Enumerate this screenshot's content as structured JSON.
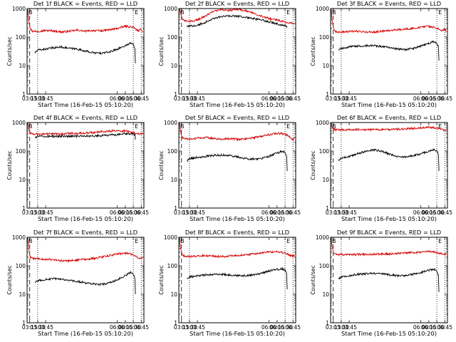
{
  "chart_data": [
    {
      "type": "line",
      "title": "Det 1f BLACK = Events, RED = LLD",
      "ylabel": "Counts/sec",
      "xlabel": "Start Time (16-Feb-15 05:10:20)",
      "yscale": "log",
      "ylim": [
        1,
        1000
      ],
      "x_range": [
        "03:10",
        "06:50"
      ],
      "x_ticks": [
        "03:15",
        "03:30",
        "03:45",
        "06:00",
        "06:15",
        "06:30",
        "06:45"
      ],
      "y_ticks": [
        "1",
        "10",
        "100",
        "1000"
      ],
      "markers": [
        "B",
        "E"
      ],
      "series": [
        {
          "color": "#d40000",
          "x": [
            "03:11",
            "03:13",
            "03:16",
            "03:20",
            "03:30",
            "03:45",
            "04:00",
            "04:15",
            "04:30",
            "04:45",
            "05:00",
            "05:15",
            "05:30",
            "05:45",
            "06:00",
            "06:15",
            "06:30",
            "06:40",
            "06:45",
            "06:48"
          ],
          "y": [
            950,
            420,
            200,
            160,
            160,
            170,
            165,
            150,
            160,
            175,
            160,
            170,
            165,
            180,
            200,
            240,
            220,
            160,
            190,
            150
          ]
        },
        {
          "color": "#000000",
          "x": [
            "03:25",
            "03:30",
            "03:45",
            "04:00",
            "04:15",
            "04:30",
            "04:45",
            "05:00",
            "05:15",
            "05:30",
            "05:45",
            "06:00",
            "06:15",
            "06:25",
            "06:30",
            "06:33",
            "06:34"
          ],
          "y": [
            28,
            35,
            38,
            42,
            45,
            40,
            38,
            32,
            28,
            27,
            30,
            38,
            50,
            62,
            55,
            40,
            12
          ]
        }
      ]
    },
    {
      "type": "line",
      "title": "Det 2f BLACK = Events, RED = LLD",
      "ylabel": "Counts/sec",
      "xlabel": "Start Time (16-Feb-15 05:10:20)",
      "yscale": "log",
      "ylim": [
        1,
        1000
      ],
      "x_range": [
        "03:10",
        "06:50"
      ],
      "x_ticks": [
        "03:15",
        "03:30",
        "03:45",
        "06:00",
        "06:15",
        "06:30",
        "06:45"
      ],
      "y_ticks": [
        "1",
        "10",
        "100",
        "1000"
      ],
      "markers": [
        "B",
        "E"
      ],
      "series": [
        {
          "color": "#d40000",
          "x": [
            "03:11",
            "03:13",
            "03:16",
            "03:20",
            "03:30",
            "03:45",
            "04:00",
            "04:15",
            "04:30",
            "04:45",
            "05:00",
            "05:15",
            "05:30",
            "05:45",
            "06:00",
            "06:15",
            "06:30",
            "06:45",
            "06:48"
          ],
          "y": [
            1000,
            700,
            450,
            380,
            350,
            400,
            550,
            800,
            900,
            850,
            950,
            850,
            700,
            550,
            450,
            400,
            330,
            310,
            300
          ]
        },
        {
          "color": "#000000",
          "x": [
            "03:25",
            "03:30",
            "03:45",
            "04:00",
            "04:15",
            "04:30",
            "04:45",
            "05:00",
            "05:15",
            "05:30",
            "05:45",
            "06:00",
            "06:15",
            "06:25",
            "06:30",
            "06:33",
            "06:34"
          ],
          "y": [
            230,
            240,
            260,
            330,
            450,
            520,
            560,
            540,
            500,
            440,
            400,
            340,
            290,
            260,
            250,
            240,
            220
          ]
        }
      ]
    },
    {
      "type": "line",
      "title": "Det 3f BLACK = Events, RED = LLD",
      "ylabel": "Counts/sec",
      "xlabel": "Start Time (16-Feb-15 05:10:20)",
      "yscale": "log",
      "ylim": [
        1,
        1000
      ],
      "x_range": [
        "03:10",
        "06:50"
      ],
      "x_ticks": [
        "03:15",
        "03:30",
        "03:45",
        "06:00",
        "06:15",
        "06:30",
        "06:45"
      ],
      "y_ticks": [
        "1",
        "10",
        "100",
        "1000"
      ],
      "markers": [
        "B",
        "E"
      ],
      "series": [
        {
          "color": "#d40000",
          "x": [
            "03:11",
            "03:13",
            "03:16",
            "03:20",
            "03:30",
            "03:45",
            "04:00",
            "04:15",
            "04:30",
            "04:45",
            "05:00",
            "05:15",
            "05:30",
            "05:45",
            "06:00",
            "06:15",
            "06:30",
            "06:40",
            "06:45",
            "06:48"
          ],
          "y": [
            950,
            380,
            190,
            150,
            150,
            155,
            160,
            150,
            150,
            160,
            170,
            180,
            190,
            200,
            220,
            240,
            210,
            170,
            190,
            160
          ]
        },
        {
          "color": "#000000",
          "x": [
            "03:25",
            "03:30",
            "03:45",
            "04:00",
            "04:15",
            "04:30",
            "04:45",
            "05:00",
            "05:15",
            "05:30",
            "05:45",
            "06:00",
            "06:15",
            "06:25",
            "06:30",
            "06:33",
            "06:34"
          ],
          "y": [
            35,
            40,
            45,
            48,
            50,
            50,
            47,
            42,
            38,
            36,
            40,
            48,
            60,
            70,
            60,
            45,
            15
          ]
        }
      ]
    },
    {
      "type": "line",
      "title": "Det 4f BLACK = Events, RED = LLD",
      "ylabel": "Counts/sec",
      "xlabel": "Start Time (16-Feb-15 05:10:20)",
      "yscale": "log",
      "ylim": [
        1,
        1000
      ],
      "x_range": [
        "03:10",
        "06:50"
      ],
      "x_ticks": [
        "03:15",
        "03:30",
        "03:45",
        "06:00",
        "06:15",
        "06:30",
        "06:45"
      ],
      "y_ticks": [
        "1",
        "10",
        "100",
        "1000"
      ],
      "markers": [
        "B",
        "E"
      ],
      "series": [
        {
          "color": "#d40000",
          "x": [
            "03:11",
            "03:13",
            "03:16",
            "03:20",
            "03:30",
            "03:45",
            "04:00",
            "04:15",
            "04:30",
            "04:45",
            "05:00",
            "05:15",
            "05:30",
            "05:45",
            "06:00",
            "06:15",
            "06:30",
            "06:45",
            "06:48"
          ],
          "y": [
            1000,
            650,
            420,
            400,
            390,
            400,
            400,
            400,
            410,
            420,
            430,
            450,
            480,
            500,
            510,
            500,
            430,
            400,
            400
          ]
        },
        {
          "color": "#000000",
          "x": [
            "03:25",
            "03:30",
            "03:45",
            "04:00",
            "04:15",
            "04:30",
            "04:45",
            "05:00",
            "05:15",
            "05:30",
            "05:45",
            "06:00",
            "06:15",
            "06:25",
            "06:30",
            "06:33",
            "06:34"
          ],
          "y": [
            300,
            320,
            330,
            330,
            330,
            330,
            330,
            340,
            340,
            350,
            360,
            380,
            400,
            410,
            400,
            380,
            250
          ]
        }
      ]
    },
    {
      "type": "line",
      "title": "Det 5f BLACK = Events, RED = LLD",
      "ylabel": "Counts/sec",
      "xlabel": "Start Time (16-Feb-15 05:10:20)",
      "yscale": "log",
      "ylim": [
        1,
        1000
      ],
      "x_range": [
        "03:10",
        "06:50"
      ],
      "x_ticks": [
        "03:15",
        "03:30",
        "03:45",
        "06:00",
        "06:15",
        "06:30",
        "06:45"
      ],
      "y_ticks": [
        "1",
        "10",
        "100",
        "1000"
      ],
      "markers": [
        "B",
        "E"
      ],
      "series": [
        {
          "color": "#d40000",
          "x": [
            "03:11",
            "03:13",
            "03:16",
            "03:20",
            "03:30",
            "03:45",
            "04:00",
            "04:15",
            "04:30",
            "04:45",
            "05:00",
            "05:15",
            "05:30",
            "05:45",
            "06:00",
            "06:15",
            "06:30",
            "06:40",
            "06:45",
            "06:48"
          ],
          "y": [
            1000,
            500,
            300,
            270,
            260,
            280,
            300,
            280,
            260,
            270,
            260,
            270,
            290,
            330,
            380,
            420,
            400,
            300,
            250,
            300
          ]
        },
        {
          "color": "#000000",
          "x": [
            "03:25",
            "03:30",
            "03:45",
            "04:00",
            "04:15",
            "04:30",
            "04:45",
            "05:00",
            "05:15",
            "05:30",
            "05:45",
            "06:00",
            "06:15",
            "06:25",
            "06:30",
            "06:33",
            "06:34"
          ],
          "y": [
            45,
            55,
            60,
            65,
            70,
            72,
            70,
            62,
            55,
            52,
            55,
            65,
            85,
            100,
            90,
            70,
            20
          ]
        }
      ]
    },
    {
      "type": "line",
      "title": "Det 6f BLACK = Events, RED = LLD",
      "ylabel": "Counts/sec",
      "xlabel": "Start Time (16-Feb-15 05:10:20)",
      "yscale": "log",
      "ylim": [
        1,
        1000
      ],
      "x_range": [
        "03:10",
        "06:50"
      ],
      "x_ticks": [
        "03:15",
        "03:30",
        "03:45",
        "06:00",
        "06:15",
        "06:30",
        "06:45"
      ],
      "y_ticks": [
        "1",
        "10",
        "100",
        "1000"
      ],
      "markers": [
        "B",
        "E"
      ],
      "series": [
        {
          "color": "#d40000",
          "x": [
            "03:11",
            "03:13",
            "03:16",
            "03:20",
            "03:30",
            "03:45",
            "04:00",
            "04:15",
            "04:30",
            "04:45",
            "05:00",
            "05:15",
            "05:30",
            "05:45",
            "06:00",
            "06:15",
            "06:30",
            "06:40",
            "06:45",
            "06:48"
          ],
          "y": [
            1000,
            700,
            580,
            560,
            560,
            560,
            570,
            560,
            560,
            570,
            560,
            580,
            600,
            620,
            650,
            680,
            640,
            560,
            520,
            560
          ]
        },
        {
          "color": "#000000",
          "x": [
            "03:25",
            "03:30",
            "03:45",
            "04:00",
            "04:15",
            "04:30",
            "04:45",
            "05:00",
            "05:15",
            "05:30",
            "05:45",
            "06:00",
            "06:15",
            "06:25",
            "06:30",
            "06:33",
            "06:34"
          ],
          "y": [
            45,
            55,
            65,
            80,
            95,
            110,
            100,
            80,
            65,
            62,
            68,
            80,
            100,
            115,
            100,
            75,
            20
          ]
        }
      ]
    },
    {
      "type": "line",
      "title": "Det 7f BLACK = Events, RED = LLD",
      "ylabel": "Counts/sec",
      "xlabel": "Start Time (16-Feb-15 05:10:20)",
      "yscale": "log",
      "ylim": [
        1,
        1000
      ],
      "x_range": [
        "03:10",
        "06:50"
      ],
      "x_ticks": [
        "03:15",
        "03:30",
        "03:45",
        "06:00",
        "06:15",
        "06:30",
        "06:45"
      ],
      "y_ticks": [
        "1",
        "10",
        "100",
        "1000"
      ],
      "markers": [
        "B",
        "E"
      ],
      "series": [
        {
          "color": "#d40000",
          "x": [
            "03:11",
            "03:13",
            "03:16",
            "03:20",
            "03:30",
            "03:45",
            "04:00",
            "04:15",
            "04:30",
            "04:45",
            "05:00",
            "05:15",
            "05:30",
            "05:45",
            "06:00",
            "06:15",
            "06:30",
            "06:40",
            "06:45",
            "06:48"
          ],
          "y": [
            950,
            400,
            200,
            180,
            175,
            170,
            160,
            150,
            150,
            160,
            170,
            180,
            200,
            230,
            260,
            280,
            240,
            180,
            190,
            200
          ]
        },
        {
          "color": "#000000",
          "x": [
            "03:25",
            "03:30",
            "03:45",
            "04:00",
            "04:15",
            "04:30",
            "04:45",
            "05:00",
            "05:15",
            "05:30",
            "05:45",
            "06:00",
            "06:15",
            "06:25",
            "06:30",
            "06:33",
            "06:34"
          ],
          "y": [
            25,
            30,
            33,
            35,
            33,
            30,
            28,
            25,
            23,
            22,
            25,
            32,
            45,
            60,
            50,
            35,
            10
          ]
        }
      ]
    },
    {
      "type": "line",
      "title": "Det 8f BLACK = Events, RED = LLD",
      "ylabel": "Counts/sec",
      "xlabel": "Start Time (16-Feb-15 05:10:20)",
      "yscale": "log",
      "ylim": [
        1,
        1000
      ],
      "x_range": [
        "03:10",
        "06:50"
      ],
      "x_ticks": [
        "03:15",
        "03:30",
        "03:45",
        "06:00",
        "06:15",
        "06:30",
        "06:45"
      ],
      "y_ticks": [
        "1",
        "10",
        "100",
        "1000"
      ],
      "markers": [
        "B",
        "E"
      ],
      "series": [
        {
          "color": "#d40000",
          "x": [
            "03:11",
            "03:13",
            "03:16",
            "03:20",
            "03:30",
            "03:45",
            "04:00",
            "04:15",
            "04:30",
            "04:45",
            "05:00",
            "05:15",
            "05:30",
            "05:45",
            "06:00",
            "06:15",
            "06:30",
            "06:40",
            "06:45",
            "06:48"
          ],
          "y": [
            1000,
            450,
            250,
            220,
            210,
            220,
            230,
            220,
            210,
            220,
            230,
            240,
            260,
            280,
            300,
            310,
            280,
            230,
            220,
            250
          ]
        },
        {
          "color": "#000000",
          "x": [
            "03:25",
            "03:30",
            "03:45",
            "04:00",
            "04:15",
            "04:30",
            "04:45",
            "05:00",
            "05:15",
            "05:30",
            "05:45",
            "06:00",
            "06:15",
            "06:25",
            "06:30",
            "06:33",
            "06:34"
          ],
          "y": [
            35,
            40,
            45,
            48,
            50,
            50,
            48,
            45,
            45,
            48,
            55,
            65,
            75,
            78,
            70,
            50,
            15
          ]
        }
      ]
    },
    {
      "type": "line",
      "title": "Det 9f BLACK = Events, RED = LLD",
      "ylabel": "Counts/sec",
      "xlabel": "Start Time (16-Feb-15 05:10:20)",
      "yscale": "log",
      "ylim": [
        1,
        1000
      ],
      "x_range": [
        "03:10",
        "06:50"
      ],
      "x_ticks": [
        "03:15",
        "03:30",
        "03:45",
        "06:00",
        "06:15",
        "06:30",
        "06:45"
      ],
      "y_ticks": [
        "1",
        "10",
        "100",
        "1000"
      ],
      "markers": [
        "B",
        "E"
      ],
      "series": [
        {
          "color": "#d40000",
          "x": [
            "03:11",
            "03:13",
            "03:16",
            "03:20",
            "03:30",
            "03:45",
            "04:00",
            "04:15",
            "04:30",
            "04:45",
            "05:00",
            "05:15",
            "05:30",
            "05:45",
            "06:00",
            "06:15",
            "06:30",
            "06:40",
            "06:45",
            "06:48"
          ],
          "y": [
            1000,
            450,
            270,
            250,
            245,
            250,
            250,
            250,
            255,
            260,
            260,
            270,
            280,
            290,
            300,
            310,
            290,
            260,
            250,
            260
          ]
        },
        {
          "color": "#000000",
          "x": [
            "03:25",
            "03:30",
            "03:45",
            "04:00",
            "04:15",
            "04:30",
            "04:45",
            "05:00",
            "05:15",
            "05:30",
            "05:45",
            "06:00",
            "06:15",
            "06:25",
            "06:30",
            "06:33",
            "06:34"
          ],
          "y": [
            35,
            40,
            45,
            50,
            52,
            55,
            52,
            48,
            45,
            45,
            50,
            58,
            70,
            75,
            65,
            45,
            12
          ]
        }
      ]
    }
  ]
}
